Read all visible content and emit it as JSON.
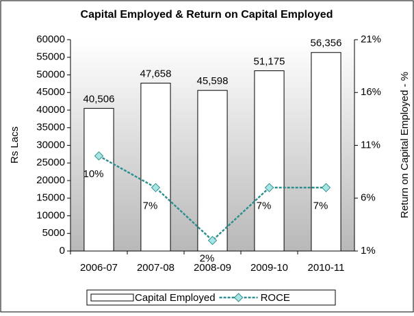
{
  "chart_data": {
    "type": "bar",
    "title": "Capital Employed & Return on Capital Employed",
    "ylabel": "Rs Lacs",
    "y2label": "Return on Capital Employed - %",
    "categories": [
      "2006-07",
      "2007-08",
      "2008-09",
      "2009-10",
      "2010-11"
    ],
    "series": [
      {
        "name": "Capital Employed",
        "type": "bar",
        "color": "#ffffff",
        "values": [
          40506,
          47658,
          45598,
          51175,
          56356
        ],
        "value_labels": [
          "40,506",
          "47,658",
          "45,598",
          "51,175",
          "56,356"
        ]
      },
      {
        "name": "ROCE",
        "type": "line",
        "axis": "y2",
        "color": "#2e8f8f",
        "values": [
          10,
          7,
          2,
          7,
          7
        ],
        "value_labels": [
          "10%",
          "7%",
          "2%",
          "7%",
          "7%"
        ]
      }
    ],
    "ylim": [
      0,
      60000
    ],
    "yticks": [
      0,
      5000,
      10000,
      15000,
      20000,
      25000,
      30000,
      35000,
      40000,
      45000,
      50000,
      55000,
      60000
    ],
    "y2lim": [
      1,
      21
    ],
    "y2ticks": [
      {
        "value": 1,
        "label": "1%"
      },
      {
        "value": 6,
        "label": "6%"
      },
      {
        "value": 11,
        "label": "11%"
      },
      {
        "value": 16,
        "label": "16%"
      },
      {
        "value": 21,
        "label": "21%"
      }
    ],
    "grid": false,
    "legend": "bottom"
  }
}
